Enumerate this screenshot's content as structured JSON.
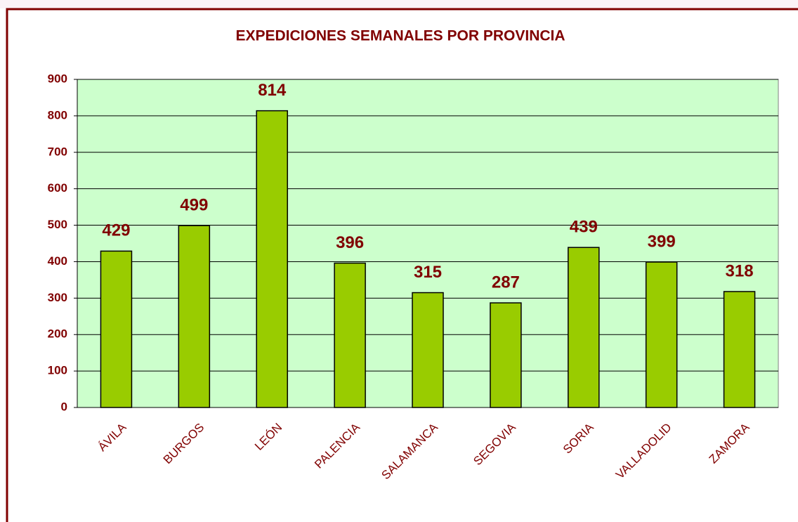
{
  "chart_data": {
    "type": "bar",
    "title": "EXPEDICIONES SEMANALES POR PROVINCIA",
    "categories": [
      "ÁVILA",
      "BURGOS",
      "LEÓN",
      "PALENCIA",
      "SALAMANCA",
      "SEGOVIA",
      "SORIA",
      "VALLADOLID",
      "ZAMORA"
    ],
    "values": [
      429,
      499,
      814,
      396,
      315,
      287,
      439,
      399,
      318
    ],
    "color": "#99cc00",
    "plot_background": "#ccffcc",
    "ylim": [
      0,
      900
    ],
    "yticks": [
      0,
      100,
      200,
      300,
      400,
      500,
      600,
      700,
      800,
      900
    ],
    "grid": true
  }
}
